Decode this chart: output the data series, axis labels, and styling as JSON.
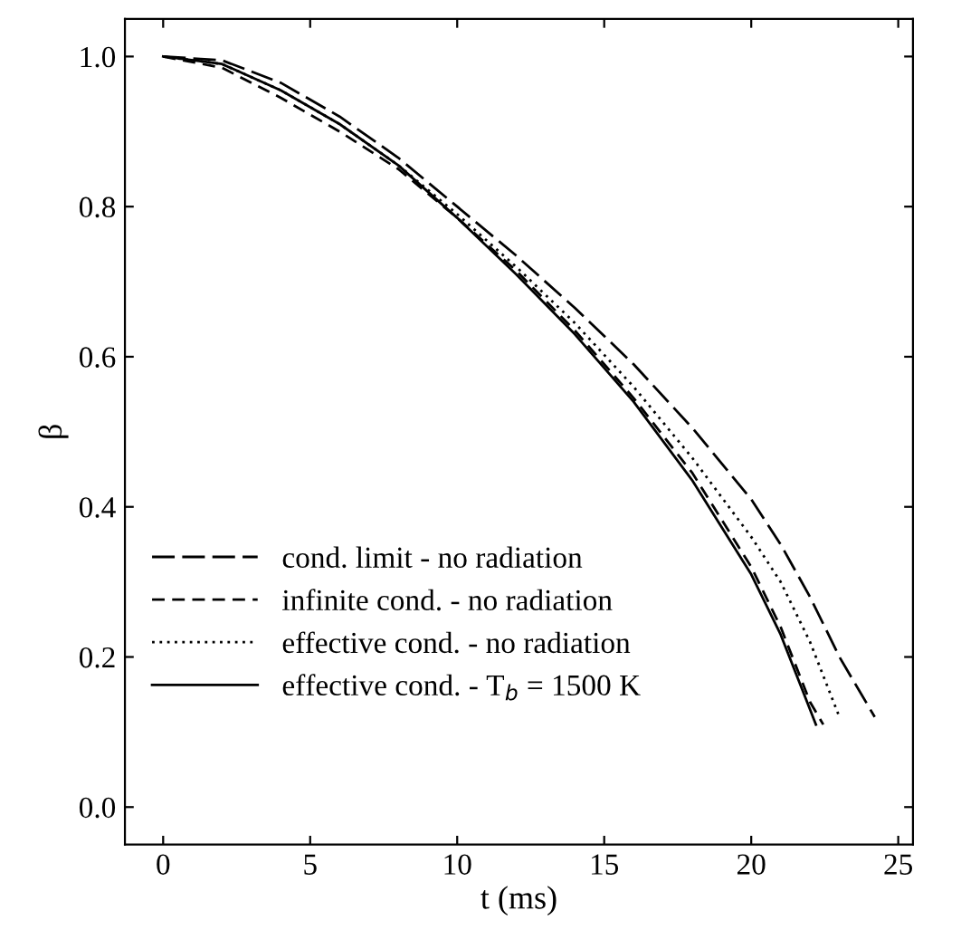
{
  "chart_data": {
    "type": "line",
    "xlabel": "t (ms)",
    "ylabel": "β",
    "xlim": [
      -1.3,
      25.5
    ],
    "ylim": [
      -0.05,
      1.05
    ],
    "xticks": [
      0,
      5,
      10,
      15,
      20,
      25
    ],
    "yticks": [
      {
        "value": 0,
        "label": "0.0"
      },
      {
        "value": 0.2,
        "label": "0.2"
      },
      {
        "value": 0.4,
        "label": "0.4"
      },
      {
        "value": 0.6,
        "label": "0.6"
      },
      {
        "value": 0.8,
        "label": "0.8"
      },
      {
        "value": 1,
        "label": "1.0"
      }
    ],
    "grid": false,
    "legend": "bottom left",
    "series": [
      {
        "name": "cond. limit - no radiation",
        "color": "#000000",
        "line_style": "dashed",
        "x": [
          0,
          2,
          4,
          6,
          8,
          10,
          12,
          14,
          16,
          18,
          20,
          21,
          22,
          23,
          24.2
        ],
        "values": [
          1.0,
          0.995,
          0.965,
          0.92,
          0.865,
          0.8,
          0.735,
          0.665,
          0.59,
          0.505,
          0.41,
          0.35,
          0.28,
          0.2,
          0.12
        ]
      },
      {
        "name": "infinite cond. - no radiation",
        "color": "#000000",
        "line_style": "dashed",
        "x": [
          0,
          2,
          4,
          6,
          8,
          10,
          12,
          14,
          16,
          18,
          20,
          21,
          22,
          22.45
        ],
        "values": [
          1.0,
          0.985,
          0.945,
          0.9,
          0.85,
          0.785,
          0.715,
          0.635,
          0.545,
          0.445,
          0.32,
          0.24,
          0.14,
          0.11
        ]
      },
      {
        "name": "effective cond. - no radiation",
        "color": "#000000",
        "line_style": "dotted",
        "x": [
          0,
          2,
          4,
          6,
          8,
          10,
          12,
          14,
          16,
          18,
          20,
          21,
          22,
          23.0
        ],
        "values": [
          1.0,
          0.99,
          0.955,
          0.91,
          0.855,
          0.79,
          0.72,
          0.645,
          0.56,
          0.465,
          0.36,
          0.3,
          0.22,
          0.12
        ]
      },
      {
        "name": "effective cond. - T$_{b}$ = 1500 K",
        "color": "#000000",
        "line_style": "solid",
        "x": [
          0,
          2,
          4,
          6,
          8,
          10,
          12,
          14,
          16,
          18,
          20,
          21,
          22,
          22.2
        ],
        "values": [
          1.0,
          0.99,
          0.955,
          0.91,
          0.855,
          0.785,
          0.71,
          0.63,
          0.54,
          0.435,
          0.31,
          0.23,
          0.13,
          0.11
        ]
      }
    ]
  }
}
